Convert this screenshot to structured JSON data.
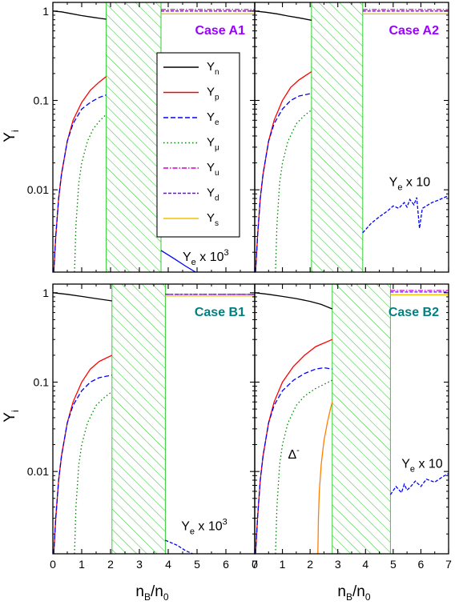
{
  "figure": {
    "ylabel_main": "Y",
    "ylabel_sub": "i",
    "xlabel_main": "n",
    "xlabel_sub1": "B",
    "xlabel_mid": "/n",
    "xlabel_sub2": "0"
  },
  "legend": [
    {
      "key": "n",
      "sym": "Y",
      "sub": "n",
      "color": "#000000",
      "dash": "none"
    },
    {
      "key": "p",
      "sym": "Y",
      "sub": "p",
      "color": "#ff0000",
      "dash": "none"
    },
    {
      "key": "e",
      "sym": "Y",
      "sub": "e",
      "color": "#0000ff",
      "dash": "6,3"
    },
    {
      "key": "mu",
      "sym": "Y",
      "sub": "μ",
      "color": "#008000",
      "dash": "1.5,3"
    },
    {
      "key": "u",
      "sym": "Y",
      "sub": "u",
      "color": "#cc00cc",
      "dash": "6,2,1.5,2"
    },
    {
      "key": "d",
      "sym": "Y",
      "sub": "d",
      "color": "#7b00ff",
      "dash": "4,2"
    },
    {
      "key": "s",
      "sym": "Y",
      "sub": "s",
      "color": "#f2c200",
      "dash": "none"
    }
  ],
  "chart_data": [
    {
      "type": "line",
      "panel": "top-left",
      "case_label": "Case A1",
      "case_color": "#9900ff",
      "xlim": [
        0,
        7
      ],
      "ylim": [
        0.0012,
        1.25
      ],
      "yscale": "log",
      "x_ticks": [
        "0",
        "1",
        "2",
        "3",
        "4",
        "5",
        "6",
        "7"
      ],
      "y_ticks": [
        {
          "v": 1,
          "label": "1"
        },
        {
          "v": 0.1,
          "label": "0.1"
        },
        {
          "v": 0.01,
          "label": "0.01"
        }
      ],
      "hatch_region": [
        1.85,
        3.75
      ],
      "annotations": [
        {
          "main": "Y",
          "sub": "e",
          "tail": " x 10",
          "sup": "3",
          "x": 4.5,
          "y": 0.0016
        }
      ],
      "series": [
        {
          "key": "n",
          "x": [
            0,
            0.3,
            0.6,
            1.0,
            1.4,
            1.85
          ],
          "y": [
            1.0,
            0.98,
            0.94,
            0.89,
            0.85,
            0.81
          ]
        },
        {
          "key": "p",
          "x": [
            0.03,
            0.1,
            0.2,
            0.3,
            0.5,
            0.7,
            1.0,
            1.3,
            1.6,
            1.85
          ],
          "y": [
            0.0012,
            0.003,
            0.008,
            0.015,
            0.035,
            0.06,
            0.095,
            0.13,
            0.16,
            0.185
          ]
        },
        {
          "key": "e",
          "x": [
            0.03,
            0.1,
            0.2,
            0.3,
            0.5,
            0.7,
            1.0,
            1.3,
            1.6,
            1.85
          ],
          "y": [
            0.0012,
            0.003,
            0.008,
            0.015,
            0.035,
            0.055,
            0.08,
            0.095,
            0.108,
            0.115
          ]
        },
        {
          "key": "mu",
          "x": [
            0.75,
            0.8,
            0.9,
            1.0,
            1.2,
            1.4,
            1.6,
            1.85
          ],
          "y": [
            0.0012,
            0.004,
            0.012,
            0.02,
            0.035,
            0.048,
            0.058,
            0.07
          ]
        },
        {
          "key": "u",
          "x": [
            3.75,
            7
          ],
          "y": [
            1.04,
            1.04
          ]
        },
        {
          "key": "d",
          "x": [
            3.75,
            7
          ],
          "y": [
            1.0,
            1.0
          ]
        },
        {
          "key": "s",
          "x": [
            3.75,
            7
          ],
          "y": [
            0.93,
            0.93
          ]
        },
        {
          "key": "e_x1000",
          "color": "#0000ff",
          "dash": "none",
          "x": [
            3.75,
            4.2,
            4.6,
            4.95
          ],
          "y": [
            0.0021,
            0.0017,
            0.0014,
            0.0012
          ]
        }
      ]
    },
    {
      "type": "line",
      "panel": "top-right",
      "case_label": "Case A2",
      "case_color": "#9900ff",
      "xlim": [
        0,
        7
      ],
      "ylim": [
        0.0012,
        1.25
      ],
      "yscale": "log",
      "x_ticks": [
        "0",
        "1",
        "2",
        "3",
        "4",
        "5",
        "6",
        "7"
      ],
      "y_ticks": [
        {
          "v": 1,
          "label": ""
        },
        {
          "v": 0.1,
          "label": ""
        },
        {
          "v": 0.01,
          "label": ""
        }
      ],
      "hatch_region": [
        2.05,
        3.9
      ],
      "annotations": [
        {
          "main": "Y",
          "sub": "e",
          "tail": " x 10",
          "sup": "",
          "x": 4.85,
          "y": 0.011
        }
      ],
      "series": [
        {
          "key": "n",
          "x": [
            0,
            0.4,
            0.8,
            1.2,
            1.6,
            2.05
          ],
          "y": [
            1.0,
            0.97,
            0.93,
            0.88,
            0.84,
            0.79
          ]
        },
        {
          "key": "p",
          "x": [
            0.03,
            0.1,
            0.2,
            0.3,
            0.5,
            0.7,
            1.0,
            1.3,
            1.6,
            2.05
          ],
          "y": [
            0.0012,
            0.003,
            0.008,
            0.015,
            0.035,
            0.06,
            0.1,
            0.14,
            0.17,
            0.21
          ]
        },
        {
          "key": "e",
          "x": [
            0.03,
            0.1,
            0.2,
            0.3,
            0.5,
            0.7,
            1.0,
            1.3,
            1.6,
            2.05
          ],
          "y": [
            0.0012,
            0.003,
            0.008,
            0.015,
            0.035,
            0.055,
            0.08,
            0.1,
            0.112,
            0.12
          ]
        },
        {
          "key": "mu",
          "x": [
            0.75,
            0.8,
            0.9,
            1.0,
            1.2,
            1.5,
            1.8,
            2.05
          ],
          "y": [
            0.0012,
            0.004,
            0.012,
            0.02,
            0.035,
            0.055,
            0.068,
            0.078
          ]
        },
        {
          "key": "u",
          "x": [
            3.9,
            7
          ],
          "y": [
            1.04,
            1.04
          ]
        },
        {
          "key": "d",
          "x": [
            3.9,
            7
          ],
          "y": [
            1.0,
            1.0
          ]
        },
        {
          "key": "s",
          "x": [
            3.9,
            7
          ],
          "y": [
            0.93,
            0.93
          ]
        },
        {
          "key": "e_x10",
          "color": "#0000ff",
          "dash": "4,2",
          "x": [
            3.9,
            4.2,
            4.5,
            4.8,
            5.0,
            5.2,
            5.4,
            5.5,
            5.6,
            5.75,
            5.85,
            5.95,
            6.05,
            6.2,
            6.4,
            6.6,
            7.0
          ],
          "y": [
            0.0033,
            0.0042,
            0.005,
            0.0058,
            0.0066,
            0.0062,
            0.0072,
            0.0064,
            0.0078,
            0.0068,
            0.0082,
            0.0037,
            0.0062,
            0.0066,
            0.0072,
            0.0076,
            0.0086
          ]
        }
      ]
    },
    {
      "type": "line",
      "panel": "bottom-left",
      "case_label": "Case B1",
      "case_color": "#008080",
      "xlim": [
        0,
        7
      ],
      "ylim": [
        0.0012,
        1.25
      ],
      "yscale": "log",
      "x_ticks": [
        "0",
        "1",
        "2",
        "3",
        "4",
        "5",
        "6",
        "7"
      ],
      "y_ticks": [
        {
          "v": 1,
          "label": "1"
        },
        {
          "v": 0.1,
          "label": "0.1"
        },
        {
          "v": 0.01,
          "label": "0.01"
        }
      ],
      "hatch_region": [
        2.05,
        3.9
      ],
      "annotations": [
        {
          "main": "Y",
          "sub": "e",
          "tail": " x 10",
          "sup": "3",
          "x": 4.45,
          "y": 0.0022
        }
      ],
      "series": [
        {
          "key": "n",
          "x": [
            0,
            0.5,
            1.0,
            1.5,
            2.05
          ],
          "y": [
            1.0,
            0.96,
            0.91,
            0.86,
            0.81
          ]
        },
        {
          "key": "p",
          "x": [
            0.03,
            0.1,
            0.2,
            0.3,
            0.5,
            0.7,
            1.0,
            1.3,
            1.6,
            2.05
          ],
          "y": [
            0.0012,
            0.003,
            0.008,
            0.015,
            0.035,
            0.06,
            0.1,
            0.14,
            0.17,
            0.2
          ]
        },
        {
          "key": "e",
          "x": [
            0.03,
            0.1,
            0.2,
            0.3,
            0.5,
            0.7,
            1.0,
            1.3,
            1.6,
            2.05
          ],
          "y": [
            0.0012,
            0.003,
            0.008,
            0.015,
            0.035,
            0.055,
            0.08,
            0.1,
            0.112,
            0.12
          ]
        },
        {
          "key": "mu",
          "x": [
            0.75,
            0.8,
            0.9,
            1.0,
            1.2,
            1.5,
            1.8,
            2.05
          ],
          "y": [
            0.0012,
            0.004,
            0.012,
            0.02,
            0.035,
            0.055,
            0.068,
            0.078
          ]
        },
        {
          "key": "u",
          "x": [
            3.9,
            7
          ],
          "y": [
            0.96,
            0.96
          ]
        },
        {
          "key": "d",
          "x": [
            3.9,
            7
          ],
          "y": [
            0.96,
            0.96
          ]
        },
        {
          "key": "s",
          "x": [
            3.9,
            7
          ],
          "y": [
            0.92,
            0.92
          ]
        },
        {
          "key": "e_x1000",
          "color": "#0000ff",
          "dash": "4,2",
          "x": [
            3.9,
            4.3,
            4.6,
            4.85
          ],
          "y": [
            0.0017,
            0.0015,
            0.0013,
            0.0012
          ]
        }
      ]
    },
    {
      "type": "line",
      "panel": "bottom-right",
      "case_label": "Case B2",
      "case_color": "#008080",
      "xlim": [
        0,
        7
      ],
      "ylim": [
        0.0012,
        1.25
      ],
      "yscale": "log",
      "x_ticks": [
        "0",
        "1",
        "2",
        "3",
        "4",
        "5",
        "6",
        "7"
      ],
      "y_ticks": [
        {
          "v": 1,
          "label": ""
        },
        {
          "v": 0.1,
          "label": ""
        },
        {
          "v": 0.01,
          "label": ""
        }
      ],
      "hatch_region": [
        2.8,
        4.9
      ],
      "annotations": [
        {
          "main": "Y",
          "sub": "e",
          "tail": " x 10",
          "sup": "",
          "x": 5.3,
          "y": 0.011
        },
        {
          "main": "Δ",
          "sub": "",
          "tail": "",
          "sup": "-",
          "x": 1.2,
          "y": 0.014
        }
      ],
      "series": [
        {
          "key": "n",
          "x": [
            0,
            0.5,
            1.0,
            1.5,
            2.0,
            2.4,
            2.8
          ],
          "y": [
            1.0,
            0.96,
            0.91,
            0.86,
            0.8,
            0.74,
            0.66
          ]
        },
        {
          "key": "p",
          "x": [
            0.03,
            0.1,
            0.2,
            0.3,
            0.5,
            0.7,
            1.0,
            1.4,
            1.8,
            2.2,
            2.8
          ],
          "y": [
            0.0012,
            0.003,
            0.008,
            0.015,
            0.035,
            0.06,
            0.1,
            0.15,
            0.2,
            0.25,
            0.3
          ]
        },
        {
          "key": "e",
          "x": [
            0.03,
            0.1,
            0.2,
            0.3,
            0.5,
            0.7,
            1.0,
            1.4,
            1.8,
            2.2,
            2.5,
            2.8
          ],
          "y": [
            0.0012,
            0.003,
            0.008,
            0.015,
            0.035,
            0.055,
            0.08,
            0.105,
            0.125,
            0.14,
            0.145,
            0.14
          ]
        },
        {
          "key": "mu",
          "x": [
            0.75,
            0.8,
            0.9,
            1.0,
            1.2,
            1.5,
            1.8,
            2.2,
            2.8
          ],
          "y": [
            0.0012,
            0.004,
            0.012,
            0.02,
            0.035,
            0.055,
            0.07,
            0.085,
            0.105
          ]
        },
        {
          "key": "delta",
          "color": "#ff7f00",
          "dash": "none",
          "x": [
            2.28,
            2.3,
            2.33,
            2.4,
            2.5,
            2.62,
            2.72,
            2.8
          ],
          "y": [
            0.0012,
            0.003,
            0.006,
            0.012,
            0.022,
            0.035,
            0.048,
            0.06
          ]
        },
        {
          "key": "u",
          "x": [
            4.9,
            7
          ],
          "y": [
            1.06,
            1.06
          ]
        },
        {
          "key": "d",
          "x": [
            4.9,
            7
          ],
          "y": [
            1.02,
            1.02
          ]
        },
        {
          "key": "s",
          "x": [
            4.9,
            7
          ],
          "y": [
            0.95,
            0.95
          ]
        },
        {
          "key": "e_x10",
          "color": "#0000ff",
          "dash": "4,2",
          "x": [
            4.9,
            5.1,
            5.3,
            5.4,
            5.5,
            5.6,
            5.8,
            6.0,
            6.2,
            6.5,
            6.8,
            7.0
          ],
          "y": [
            0.0055,
            0.0068,
            0.0058,
            0.0072,
            0.0062,
            0.0066,
            0.0078,
            0.0068,
            0.0082,
            0.0076,
            0.0088,
            0.0095
          ]
        }
      ]
    }
  ]
}
